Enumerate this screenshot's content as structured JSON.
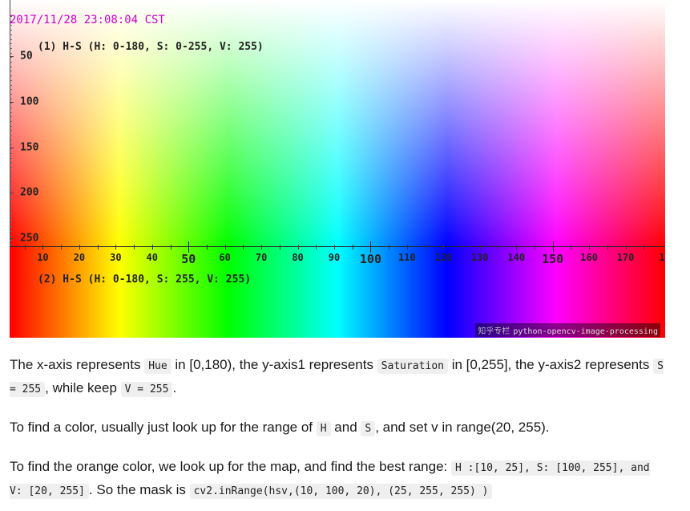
{
  "figure": {
    "timestamp": "2017/11/28 23:08:04 CST",
    "panel1_caption": "(1) H-S (H: 0-180, S: 0-255, V: 255)",
    "panel2_caption": "(2) H-S (H: 0-180, S: 255, V: 255)",
    "y_axis_labels": [
      "50",
      "100",
      "150",
      "200",
      "250"
    ],
    "x_axis_labels": [
      "10",
      "20",
      "30",
      "40",
      "50",
      "60",
      "70",
      "80",
      "90",
      "100",
      "110",
      "120",
      "130",
      "140",
      "150",
      "160",
      "170",
      "1"
    ],
    "watermark_cn": "知乎专栏",
    "watermark": "python-opencv-image-processing"
  },
  "paragraphs": {
    "p1": {
      "t1": "The x-axis represents ",
      "c1": "Hue",
      "t2": " in [0,180), the y-axis1 represents ",
      "c2": "Saturation",
      "t3": " in [0,255], the y-axis2 represents ",
      "c3": "S = 255",
      "t4": ", while keep ",
      "c4": "V = 255",
      "t5": "."
    },
    "p2": {
      "t1": "To find a color, usually just look up for the range of ",
      "c1": "H",
      "t2": " and ",
      "c2": "S",
      "t3": ", and set v in range(20, 255)."
    },
    "p3": {
      "t1": "To find the orange color, we look up for the map, and find the best range: ",
      "c1": "H :[10, 25], S: [100, 255], and V: [20, 255]",
      "t2": ". So the mask is ",
      "c2": "cv2.inRange(hsv,(10, 100, 20), (25, 255, 255) )"
    }
  }
}
